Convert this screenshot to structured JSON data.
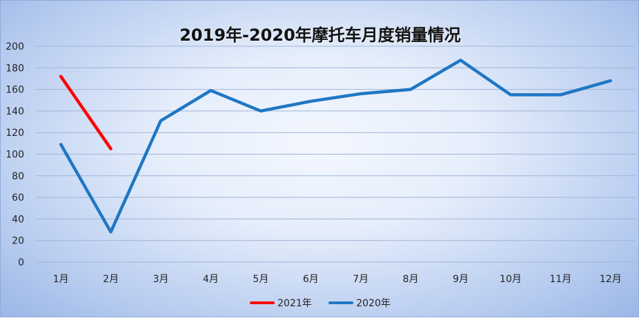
{
  "chart_data": {
    "type": "line",
    "title": "2019年-2020年摩托车月度销量情况",
    "xlabel": "",
    "ylabel": "",
    "categories": [
      "1月",
      "2月",
      "3月",
      "4月",
      "5月",
      "6月",
      "7月",
      "8月",
      "9月",
      "10月",
      "11月",
      "12月"
    ],
    "yticks": [
      0,
      20,
      40,
      60,
      80,
      100,
      120,
      140,
      160,
      180,
      200
    ],
    "ylim": [
      0,
      200
    ],
    "grid": true,
    "legend_position": "bottom",
    "series": [
      {
        "name": "2021年",
        "color": "#ff0000",
        "values": [
          172,
          105,
          null,
          null,
          null,
          null,
          null,
          null,
          null,
          null,
          null,
          null
        ]
      },
      {
        "name": "2020年",
        "color": "#1f77c4",
        "values": [
          109,
          28,
          131,
          159,
          140,
          149,
          156,
          160,
          187,
          155,
          155,
          168
        ]
      }
    ]
  }
}
